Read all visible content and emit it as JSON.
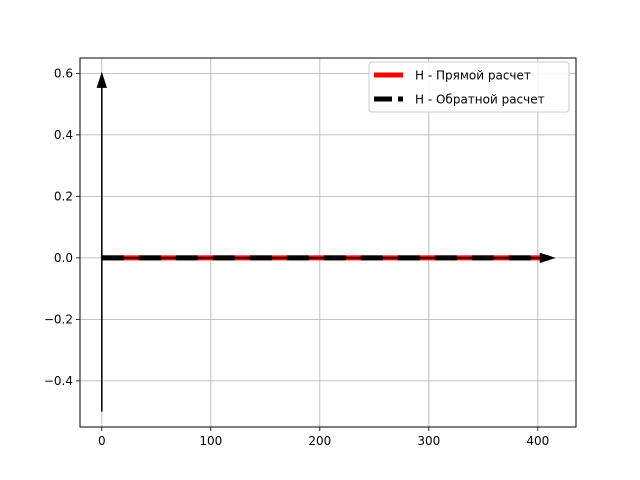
{
  "chart_data": {
    "type": "line",
    "title": "",
    "xlabel": "",
    "ylabel": "",
    "xlim": [
      -20,
      435
    ],
    "ylim": [
      -0.55,
      0.65
    ],
    "grid": true,
    "x_ticks": [
      0,
      100,
      200,
      300,
      400
    ],
    "y_ticks": [
      -0.4,
      -0.2,
      0.0,
      0.2,
      0.4,
      0.6
    ],
    "x_tick_labels": [
      "0",
      "100",
      "200",
      "300",
      "400"
    ],
    "y_tick_labels": [
      "−0.4",
      "−0.2",
      "0.0",
      "0.2",
      "0.4",
      "0.6"
    ],
    "legend_position": "top-right",
    "series": [
      {
        "name": "H - Прямой расчет",
        "color": "#ff0000",
        "style": "solid",
        "x": [
          0,
          410
        ],
        "y": [
          0,
          0
        ]
      },
      {
        "name": "H - Обратной расчет",
        "color": "#000000",
        "style": "dashed",
        "x": [
          0,
          410
        ],
        "y": [
          0,
          0
        ]
      }
    ],
    "annotations": [
      {
        "type": "arrow",
        "from": [
          0,
          -0.5
        ],
        "to": [
          0,
          0.6
        ],
        "color": "#000000"
      },
      {
        "type": "arrow",
        "from": [
          0,
          0
        ],
        "to": [
          415,
          0
        ],
        "color": "#000000"
      }
    ]
  }
}
